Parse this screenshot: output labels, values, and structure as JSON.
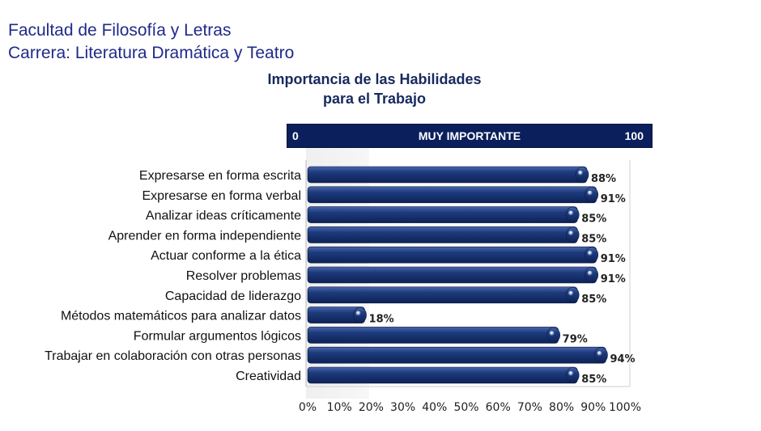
{
  "header": {
    "line1": "Facultad de Filosofía y Letras",
    "line2": "Carrera: Literatura Dramática y Teatro"
  },
  "scale_bar": {
    "min_label": "0",
    "label": "MUY IMPORTANTE",
    "max_label": "100"
  },
  "colors": {
    "bar": "#1d3b7c",
    "bar_dark": "#0e2257",
    "scale_bar": "#0b1f5c",
    "title": "#16295e",
    "header": "#1f2a8a"
  },
  "chart_data": {
    "type": "bar",
    "orientation": "horizontal",
    "title": "Importancia de las Habilidades para el Trabajo",
    "title_lines": [
      "Importancia de las Habilidades",
      "para el Trabajo"
    ],
    "categories": [
      "Expresarse en forma escrita",
      "Expresarse en forma verbal",
      "Analizar ideas críticamente",
      "Aprender en forma independiente",
      "Actuar conforme a la ética",
      "Resolver problemas",
      "Capacidad de liderazgo",
      "Métodos matemáticos para analizar datos",
      "Formular argumentos lógicos",
      "Trabajar en colaboración con otras personas",
      "Creatividad"
    ],
    "values": [
      88,
      91,
      85,
      85,
      91,
      91,
      85,
      18,
      79,
      94,
      85
    ],
    "value_labels": [
      "88%",
      "91%",
      "85%",
      "85%",
      "91%",
      "91%",
      "85%",
      "18%",
      "79%",
      "94%",
      "85%"
    ],
    "x_ticks": [
      "0%",
      "10%",
      "20%",
      "30%",
      "40%",
      "50%",
      "60%",
      "70%",
      "80%",
      "90%",
      "100%"
    ],
    "xlim": [
      0,
      100
    ],
    "xlabel": "",
    "ylabel": "",
    "grid": false,
    "legend": false
  }
}
